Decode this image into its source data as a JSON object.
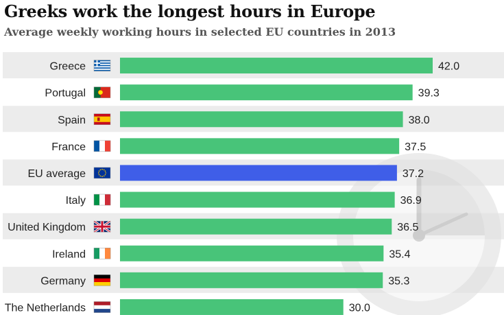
{
  "title": "Greeks work the longest hours in Europe",
  "subtitle": "Average weekly working hours in selected EU countries in 2013",
  "chart_data": {
    "type": "bar",
    "orientation": "horizontal",
    "categories": [
      "Greece",
      "Portugal",
      "Spain",
      "France",
      "EU average",
      "Italy",
      "United Kingdom",
      "Ireland",
      "Germany",
      "The Netherlands"
    ],
    "values": [
      42.0,
      39.3,
      38.0,
      37.5,
      37.2,
      36.9,
      36.5,
      35.4,
      35.3,
      30.0
    ],
    "value_labels": [
      "42.0",
      "39.3",
      "38.0",
      "37.5",
      "37.2",
      "36.9",
      "36.5",
      "35.4",
      "35.3",
      "30.0"
    ],
    "flags": [
      "greece-flag",
      "portugal-flag",
      "spain-flag",
      "france-flag",
      "eu-flag",
      "italy-flag",
      "uk-flag",
      "ireland-flag",
      "germany-flag",
      "netherlands-flag"
    ],
    "bar_color": "#48c479",
    "highlight_category": "EU average",
    "highlight_color": "#3f5ee8",
    "row_band_color": "#ececec",
    "xlim": [
      0,
      42.0
    ],
    "grid": false,
    "legend": "none",
    "background_icon": "clock-icon"
  }
}
